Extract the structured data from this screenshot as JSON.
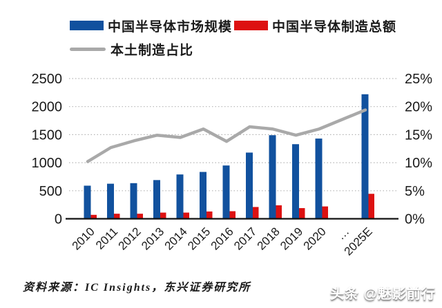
{
  "legend": {
    "market_label": "中国半导体市场规模",
    "production_label": "中国半导体制造总额",
    "ratio_label": "本土制造占比"
  },
  "colors": {
    "market_bar": "#11519E",
    "production_bar": "#DD1111",
    "ratio_line": "#A9A9A9",
    "gridline": "#B4B4B4",
    "axis_line": "#111111",
    "axis_text": "#1A1A1A"
  },
  "chart_data": {
    "type": "bar",
    "subtype": "combo bar + line, dual axis",
    "categories": [
      "2010",
      "2011",
      "2012",
      "2013",
      "2014",
      "2015",
      "2016",
      "2017",
      "2018",
      "2019",
      "2020",
      "…",
      "2025E"
    ],
    "series": [
      {
        "name": "中国半导体市场规模",
        "type": "bar",
        "axis": "left",
        "values": [
          590,
          625,
          635,
          690,
          790,
          835,
          950,
          1180,
          1490,
          1330,
          1430,
          null,
          2220
        ]
      },
      {
        "name": "中国半导体制造总额",
        "type": "bar",
        "axis": "left",
        "values": [
          70,
          90,
          90,
          110,
          110,
          130,
          135,
          210,
          240,
          190,
          220,
          null,
          445
        ]
      },
      {
        "name": "本土制造占比",
        "type": "line",
        "axis": "right",
        "values": [
          10.2,
          12.7,
          13.9,
          14.9,
          14.5,
          16.0,
          13.8,
          16.4,
          16.0,
          14.9,
          16.0,
          null,
          19.4
        ]
      }
    ],
    "left_axis": {
      "min": 0,
      "max": 2500,
      "step": 500,
      "ticks": [
        "0",
        "500",
        "1000",
        "1500",
        "2000",
        "2500"
      ]
    },
    "right_axis": {
      "min": 0,
      "max": 25,
      "step": 5,
      "ticks": [
        "0%",
        "5%",
        "10%",
        "15%",
        "20%",
        "25%"
      ]
    },
    "grid": "horizontal dotted, on",
    "legend_position": "top"
  },
  "footer": {
    "source_text": "资料来源：IC Insights，东兴证券研究所"
  },
  "watermark": {
    "text": "头条 @魅影前行"
  }
}
